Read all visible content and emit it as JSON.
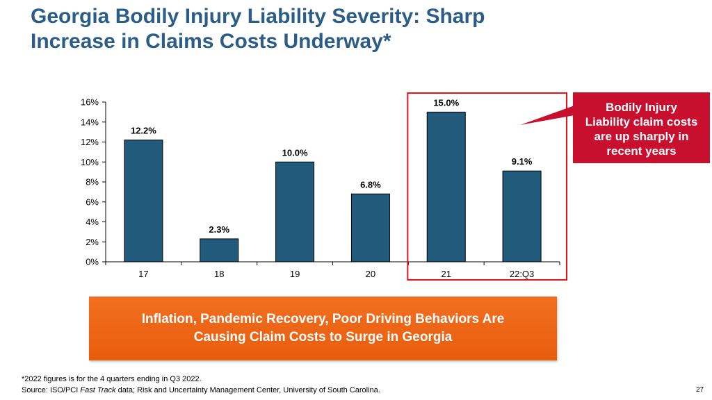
{
  "title": {
    "line1": "Georgia Bodily Injury Liability Severity: Sharp",
    "line2": "Increase in Claims Costs Underway*"
  },
  "chart_data": {
    "type": "bar",
    "categories": [
      "17",
      "18",
      "19",
      "20",
      "21",
      "22:Q3"
    ],
    "values": [
      12.2,
      2.3,
      10.0,
      6.8,
      15.0,
      9.1
    ],
    "data_labels": [
      "12.2%",
      "2.3%",
      "10.0%",
      "6.8%",
      "15.0%",
      "9.1%"
    ],
    "ylim": [
      0,
      16
    ],
    "yticks": [
      "0%",
      "2%",
      "4%",
      "6%",
      "8%",
      "10%",
      "12%",
      "14%",
      "16%"
    ],
    "highlighted_categories": [
      "21",
      "22:Q3"
    ],
    "title": "",
    "xlabel": "",
    "ylabel": ""
  },
  "callout": {
    "line1": "Bodily Injury",
    "line2": "Liability claim costs",
    "line3": "are up sharply in",
    "line4": "recent years"
  },
  "banner": {
    "line1": "Inflation, Pandemic Recovery, Poor Driving Behaviors Are",
    "line2": "Causing Claim Costs to Surge in Georgia"
  },
  "footnote": {
    "line1": "*2022 figures is for the 4 quarters ending in Q3 2022.",
    "source_prefix": "Source: ISO/PCI ",
    "source_italic": "Fast Track",
    "source_suffix": " data; Risk and Uncertainty Management Center, University of South Carolina."
  },
  "page_number": "27",
  "colors": {
    "title": "#2b5d86",
    "bar": "#215a7b",
    "highlight_border": "#e8121a",
    "callout": "#c8102e",
    "banner": "#f26f21"
  }
}
